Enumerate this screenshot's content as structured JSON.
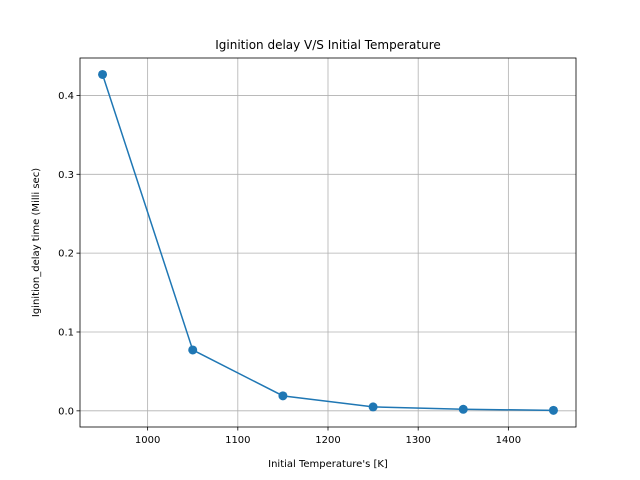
{
  "chart_data": {
    "type": "line",
    "title": "Iginition delay V/S Initial Temperature",
    "xlabel": "Initial Temperature's [K]",
    "ylabel": "Iginition_delay time (Milli sec)",
    "x": [
      950,
      1050,
      1150,
      1250,
      1350,
      1450
    ],
    "series": [
      {
        "values": [
          0.4266,
          0.0772,
          0.019,
          0.005,
          0.002,
          0.0006
        ],
        "color": "#1f77b4",
        "marker": "circle"
      }
    ],
    "xlim": [
      925,
      1475
    ],
    "ylim": [
      -0.0205,
      0.4475
    ],
    "xticks": [
      1000,
      1100,
      1200,
      1300,
      1400
    ],
    "xtick_labels": [
      "1000",
      "1100",
      "1200",
      "1300",
      "1400"
    ],
    "yticks": [
      0.0,
      0.1,
      0.2,
      0.3,
      0.4
    ],
    "ytick_labels": [
      "0.0",
      "0.1",
      "0.2",
      "0.3",
      "0.4"
    ],
    "grid": true
  }
}
